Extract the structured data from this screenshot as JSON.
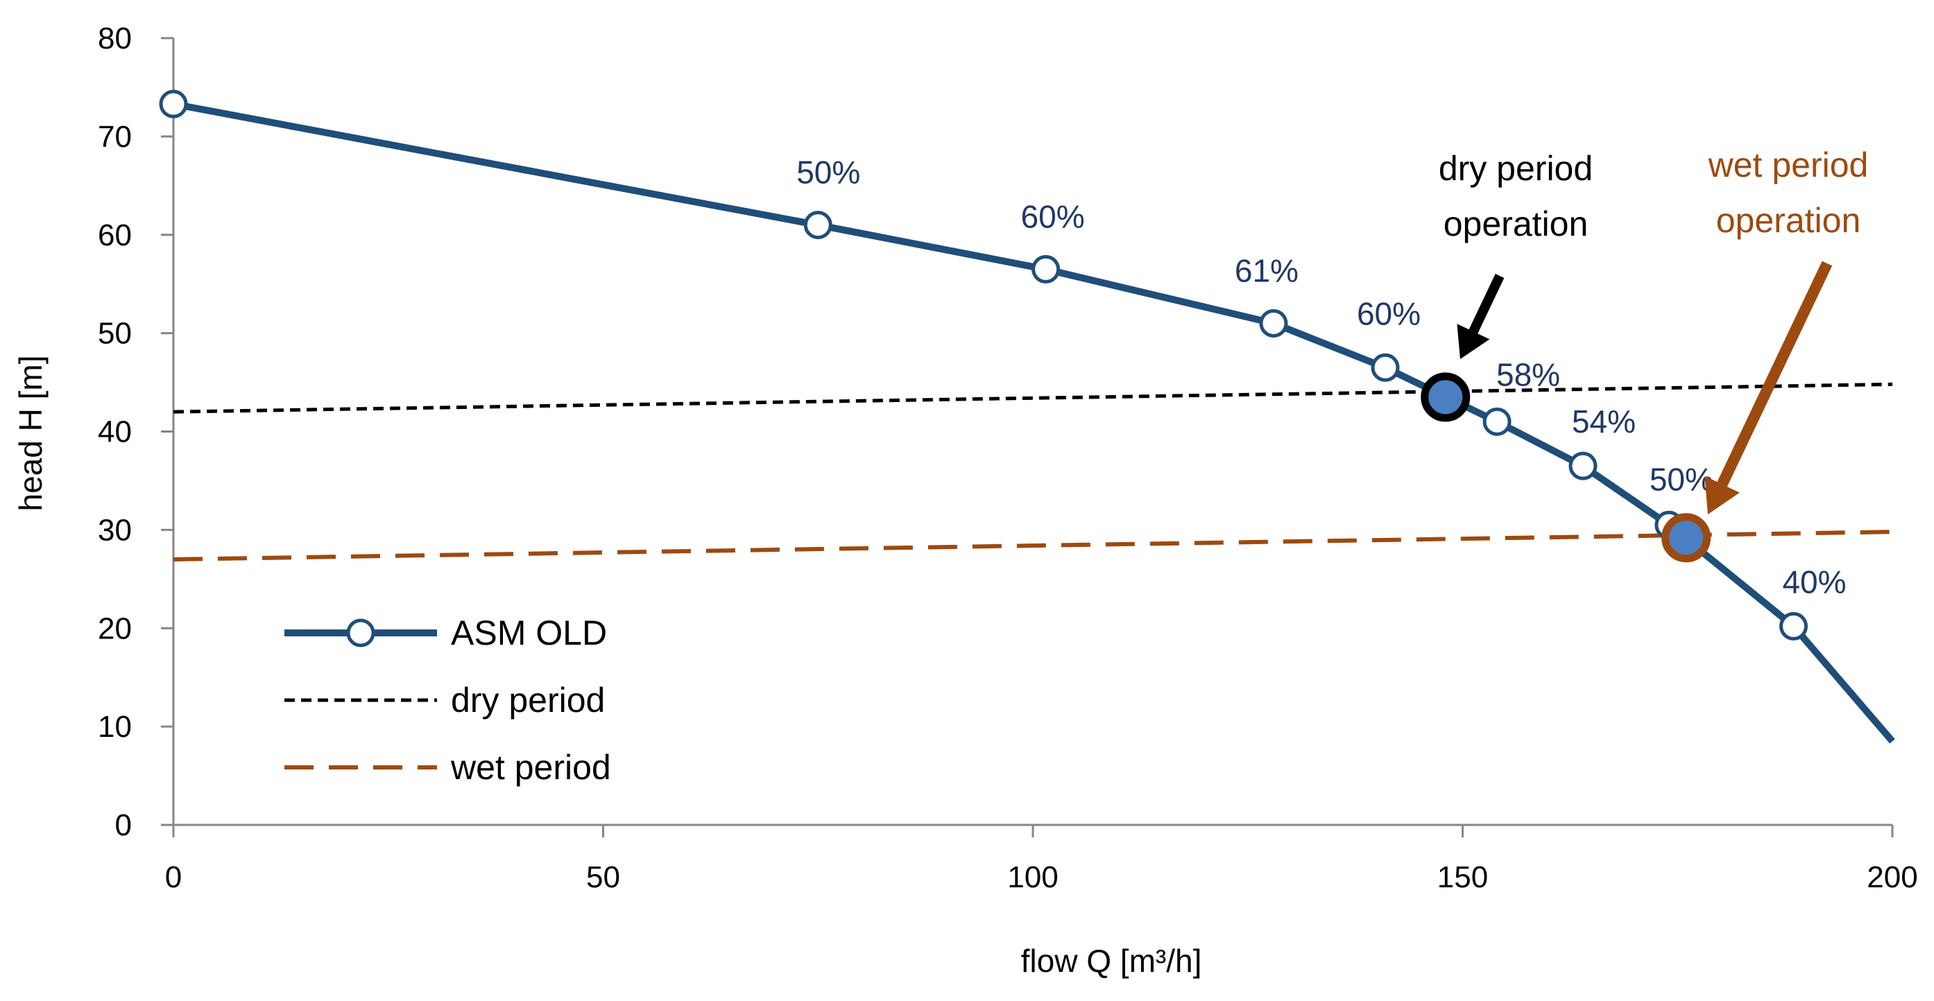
{
  "chart_data": {
    "type": "line",
    "xlabel": "flow Q [m³/h]",
    "ylabel": "head H [m]",
    "xlim": [
      0,
      200
    ],
    "ylim": [
      0,
      80
    ],
    "x_ticks": [
      "0",
      "50",
      "100",
      "150",
      "200"
    ],
    "y_ticks": [
      "0",
      "10",
      "20",
      "30",
      "40",
      "50",
      "60",
      "70",
      "80"
    ],
    "grid": false,
    "legend_position": "bottom-left",
    "series": [
      {
        "name": "ASM OLD",
        "style": "solid-with-markers",
        "color": "#1f4e79",
        "x": [
          0,
          75,
          101.5,
          128,
          141,
          154,
          164,
          174,
          188.5,
          200
        ],
        "y": [
          73.3,
          61,
          56.5,
          51,
          46.5,
          41,
          36.5,
          30.5,
          20.2,
          8.5
        ],
        "markers": [
          true,
          true,
          true,
          true,
          true,
          true,
          true,
          true,
          true,
          false
        ]
      },
      {
        "name": "dry period",
        "style": "short-dash",
        "color": "#000000",
        "x": [
          0,
          200
        ],
        "y": [
          42,
          44.8
        ]
      },
      {
        "name": "wet period",
        "style": "long-dash",
        "color": "#9c4a10",
        "x": [
          0,
          200
        ],
        "y": [
          27,
          29.8
        ]
      }
    ],
    "efficiency_labels": [
      {
        "text": "50%",
        "x": 75,
        "y": 61
      },
      {
        "text": "60%",
        "x": 101.5,
        "y": 56.5
      },
      {
        "text": "61%",
        "x": 128,
        "y": 51
      },
      {
        "text": "60%",
        "x": 141,
        "y": 46.5
      },
      {
        "text": "58%",
        "x": 154,
        "y": 41
      },
      {
        "text": "54%",
        "x": 164,
        "y": 36.5
      },
      {
        "text": "50%",
        "x": 174,
        "y": 30.5
      },
      {
        "text": "40%",
        "x": 188.5,
        "y": 20.2
      }
    ],
    "operating_points": [
      {
        "label_lines": [
          "dry period",
          "operation"
        ],
        "x": 148,
        "y": 43.5,
        "ring_color": "#000000",
        "fill": "#4a7fc1"
      },
      {
        "label_lines": [
          "wet period",
          "operation"
        ],
        "x": 176,
        "y": 29.2,
        "ring_color": "#9c4a10",
        "fill": "#4a7fc1"
      }
    ]
  }
}
